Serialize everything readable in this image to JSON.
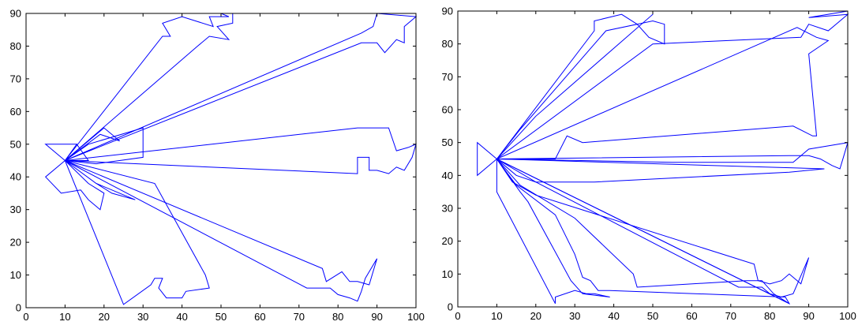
{
  "chart_data": [
    {
      "type": "line",
      "title": "",
      "xlabel": "",
      "ylabel": "",
      "xlim": [
        0,
        100
      ],
      "ylim": [
        0,
        90
      ],
      "xticks": [
        0,
        10,
        20,
        30,
        40,
        50,
        60,
        70,
        80,
        90,
        100
      ],
      "yticks": [
        0,
        10,
        20,
        30,
        40,
        50,
        60,
        70,
        80,
        90
      ],
      "grid": false,
      "line_color": "#0000ff",
      "series": [
        {
          "points": [
            [
              10,
              45
            ],
            [
              5,
              50
            ],
            [
              13,
              50
            ],
            [
              10,
              45
            ],
            [
              13,
              50
            ],
            [
              16,
              45
            ],
            [
              10,
              45
            ]
          ]
        },
        {
          "points": [
            [
              10,
              45
            ],
            [
              5,
              40
            ],
            [
              9,
              35
            ],
            [
              14,
              36
            ],
            [
              16,
              33
            ],
            [
              19,
              30
            ],
            [
              20,
              35
            ],
            [
              16,
              38
            ],
            [
              10,
              45
            ]
          ]
        },
        {
          "points": [
            [
              10,
              45
            ],
            [
              18,
              38
            ],
            [
              22,
              35
            ],
            [
              28,
              33
            ],
            [
              18,
              38
            ],
            [
              10,
              45
            ]
          ]
        },
        {
          "points": [
            [
              10,
              45
            ],
            [
              16,
              50
            ],
            [
              30,
              55
            ],
            [
              30,
              46
            ],
            [
              18,
              44
            ],
            [
              10,
              45
            ]
          ]
        },
        {
          "points": [
            [
              10,
              45
            ],
            [
              20,
              55
            ],
            [
              24,
              51
            ],
            [
              19,
              53
            ],
            [
              10,
              45
            ]
          ]
        },
        {
          "points": [
            [
              10,
              45
            ],
            [
              35,
              83
            ],
            [
              37,
              83
            ],
            [
              35,
              87
            ],
            [
              40,
              89
            ],
            [
              48,
              86
            ],
            [
              47,
              89
            ],
            [
              52,
              89
            ],
            [
              50,
              90
            ],
            [
              53,
              90
            ],
            [
              53,
              87
            ],
            [
              49,
              86
            ],
            [
              52,
              82
            ],
            [
              47,
              83
            ],
            [
              44,
              80
            ],
            [
              10,
              45
            ]
          ]
        },
        {
          "points": [
            [
              10,
              45
            ],
            [
              86,
              84
            ],
            [
              89,
              86
            ],
            [
              90,
              90
            ],
            [
              100,
              89
            ],
            [
              97,
              86
            ],
            [
              97,
              81
            ],
            [
              95,
              82
            ],
            [
              92,
              78
            ],
            [
              90,
              81
            ],
            [
              86,
              81
            ],
            [
              10,
              45
            ]
          ]
        },
        {
          "points": [
            [
              10,
              45
            ],
            [
              85,
              55
            ],
            [
              93,
              55
            ],
            [
              95,
              48
            ],
            [
              98,
              49
            ],
            [
              100,
              50
            ],
            [
              99,
              46
            ],
            [
              97,
              42
            ],
            [
              95,
              43
            ],
            [
              93,
              41
            ],
            [
              90,
              42
            ],
            [
              88,
              42
            ],
            [
              88,
              46
            ],
            [
              85,
              46
            ],
            [
              85,
              41
            ],
            [
              10,
              45
            ]
          ]
        },
        {
          "points": [
            [
              10,
              45
            ],
            [
              33,
              38
            ],
            [
              46,
              10
            ],
            [
              47,
              6
            ],
            [
              41,
              5
            ],
            [
              40,
              3
            ],
            [
              36,
              3
            ],
            [
              34,
              6
            ],
            [
              35,
              9
            ],
            [
              33,
              9
            ],
            [
              32,
              7
            ],
            [
              25,
              1
            ],
            [
              10,
              45
            ]
          ]
        },
        {
          "points": [
            [
              10,
              45
            ],
            [
              76,
              12
            ],
            [
              77,
              8
            ],
            [
              81,
              11
            ],
            [
              83,
              8
            ],
            [
              85,
              8
            ],
            [
              88,
              7
            ],
            [
              90,
              15
            ],
            [
              87,
              9
            ],
            [
              86,
              5
            ],
            [
              85,
              2
            ],
            [
              83,
              3
            ],
            [
              80,
              4
            ],
            [
              78,
              6
            ],
            [
              72,
              6
            ],
            [
              10,
              45
            ]
          ]
        }
      ]
    },
    {
      "type": "line",
      "title": "",
      "xlabel": "",
      "ylabel": "",
      "xlim": [
        0,
        100
      ],
      "ylim": [
        0,
        90
      ],
      "xticks": [
        0,
        10,
        20,
        30,
        40,
        50,
        60,
        70,
        80,
        90,
        100
      ],
      "yticks": [
        0,
        10,
        20,
        30,
        40,
        50,
        60,
        70,
        80,
        90
      ],
      "grid": false,
      "line_color": "#0000ff",
      "series": [
        {
          "points": [
            [
              10,
              45
            ],
            [
              5,
              50
            ],
            [
              5,
              40
            ],
            [
              10,
              45
            ]
          ]
        },
        {
          "points": [
            [
              10,
              45
            ],
            [
              35,
              84
            ],
            [
              35,
              87
            ],
            [
              42,
              89
            ],
            [
              46,
              86
            ],
            [
              50,
              87
            ],
            [
              53,
              86
            ],
            [
              53,
              80
            ],
            [
              49,
              82
            ],
            [
              46,
              86
            ],
            [
              38,
              84
            ],
            [
              16,
              54
            ],
            [
              10,
              45
            ]
          ]
        },
        {
          "points": [
            [
              10,
              45
            ],
            [
              20,
              58
            ],
            [
              50,
              89
            ],
            [
              50,
              90
            ],
            [
              100,
              90
            ],
            [
              90,
              88
            ],
            [
              100,
              89
            ],
            [
              97,
              86
            ],
            [
              95,
              84
            ],
            [
              90,
              86
            ],
            [
              88,
              82
            ],
            [
              50,
              80
            ],
            [
              10,
              45
            ]
          ]
        },
        {
          "points": [
            [
              10,
              45
            ],
            [
              25,
              45
            ],
            [
              28,
              52
            ],
            [
              32,
              50
            ],
            [
              86,
              55
            ],
            [
              91,
              52
            ],
            [
              92,
              52
            ],
            [
              90,
              77
            ],
            [
              95,
              81
            ],
            [
              92,
              82
            ],
            [
              87,
              85
            ],
            [
              10,
              45
            ]
          ]
        },
        {
          "points": [
            [
              10,
              45
            ],
            [
              55,
              44
            ],
            [
              86,
              44
            ],
            [
              90,
              48
            ],
            [
              100,
              50
            ],
            [
              99,
              46
            ],
            [
              98,
              42
            ],
            [
              96,
              43
            ],
            [
              93,
              45
            ],
            [
              90,
              46
            ],
            [
              85,
              46
            ],
            [
              10,
              45
            ]
          ]
        },
        {
          "points": [
            [
              10,
              45
            ],
            [
              15,
              40
            ],
            [
              20,
              38
            ],
            [
              35,
              38
            ],
            [
              85,
              41
            ],
            [
              94,
              42
            ],
            [
              10,
              45
            ]
          ]
        },
        {
          "points": [
            [
              10,
              45
            ],
            [
              14,
              38
            ],
            [
              20,
              34
            ],
            [
              76,
              13
            ],
            [
              77,
              8
            ],
            [
              80,
              7
            ],
            [
              83,
              8
            ],
            [
              85,
              10
            ],
            [
              88,
              7
            ],
            [
              90,
              15
            ],
            [
              86,
              4
            ],
            [
              83,
              3
            ],
            [
              80,
              4
            ],
            [
              78,
              6
            ],
            [
              72,
              6
            ],
            [
              20,
              38
            ],
            [
              10,
              45
            ]
          ]
        },
        {
          "points": [
            [
              10,
              45
            ],
            [
              16,
              37
            ],
            [
              30,
              27
            ],
            [
              45,
              10
            ],
            [
              46,
              6
            ],
            [
              74,
              8
            ],
            [
              78,
              8
            ],
            [
              81,
              4
            ],
            [
              85,
              1
            ],
            [
              10,
              45
            ]
          ]
        },
        {
          "points": [
            [
              10,
              45
            ],
            [
              15,
              37
            ],
            [
              25,
              28
            ],
            [
              30,
              16
            ],
            [
              32,
              9
            ],
            [
              34,
              8
            ],
            [
              36,
              5
            ],
            [
              39,
              5
            ],
            [
              84,
              3
            ],
            [
              85,
              1
            ],
            [
              10,
              45
            ]
          ]
        },
        {
          "points": [
            [
              10,
              45
            ],
            [
              10,
              35
            ],
            [
              25,
              1
            ],
            [
              25,
              3
            ],
            [
              30,
              5
            ],
            [
              33,
              4
            ],
            [
              35,
              4
            ],
            [
              39,
              3
            ],
            [
              32,
              4
            ],
            [
              29,
              8
            ],
            [
              18,
              32
            ],
            [
              16,
              35
            ],
            [
              10,
              45
            ]
          ]
        }
      ]
    }
  ]
}
